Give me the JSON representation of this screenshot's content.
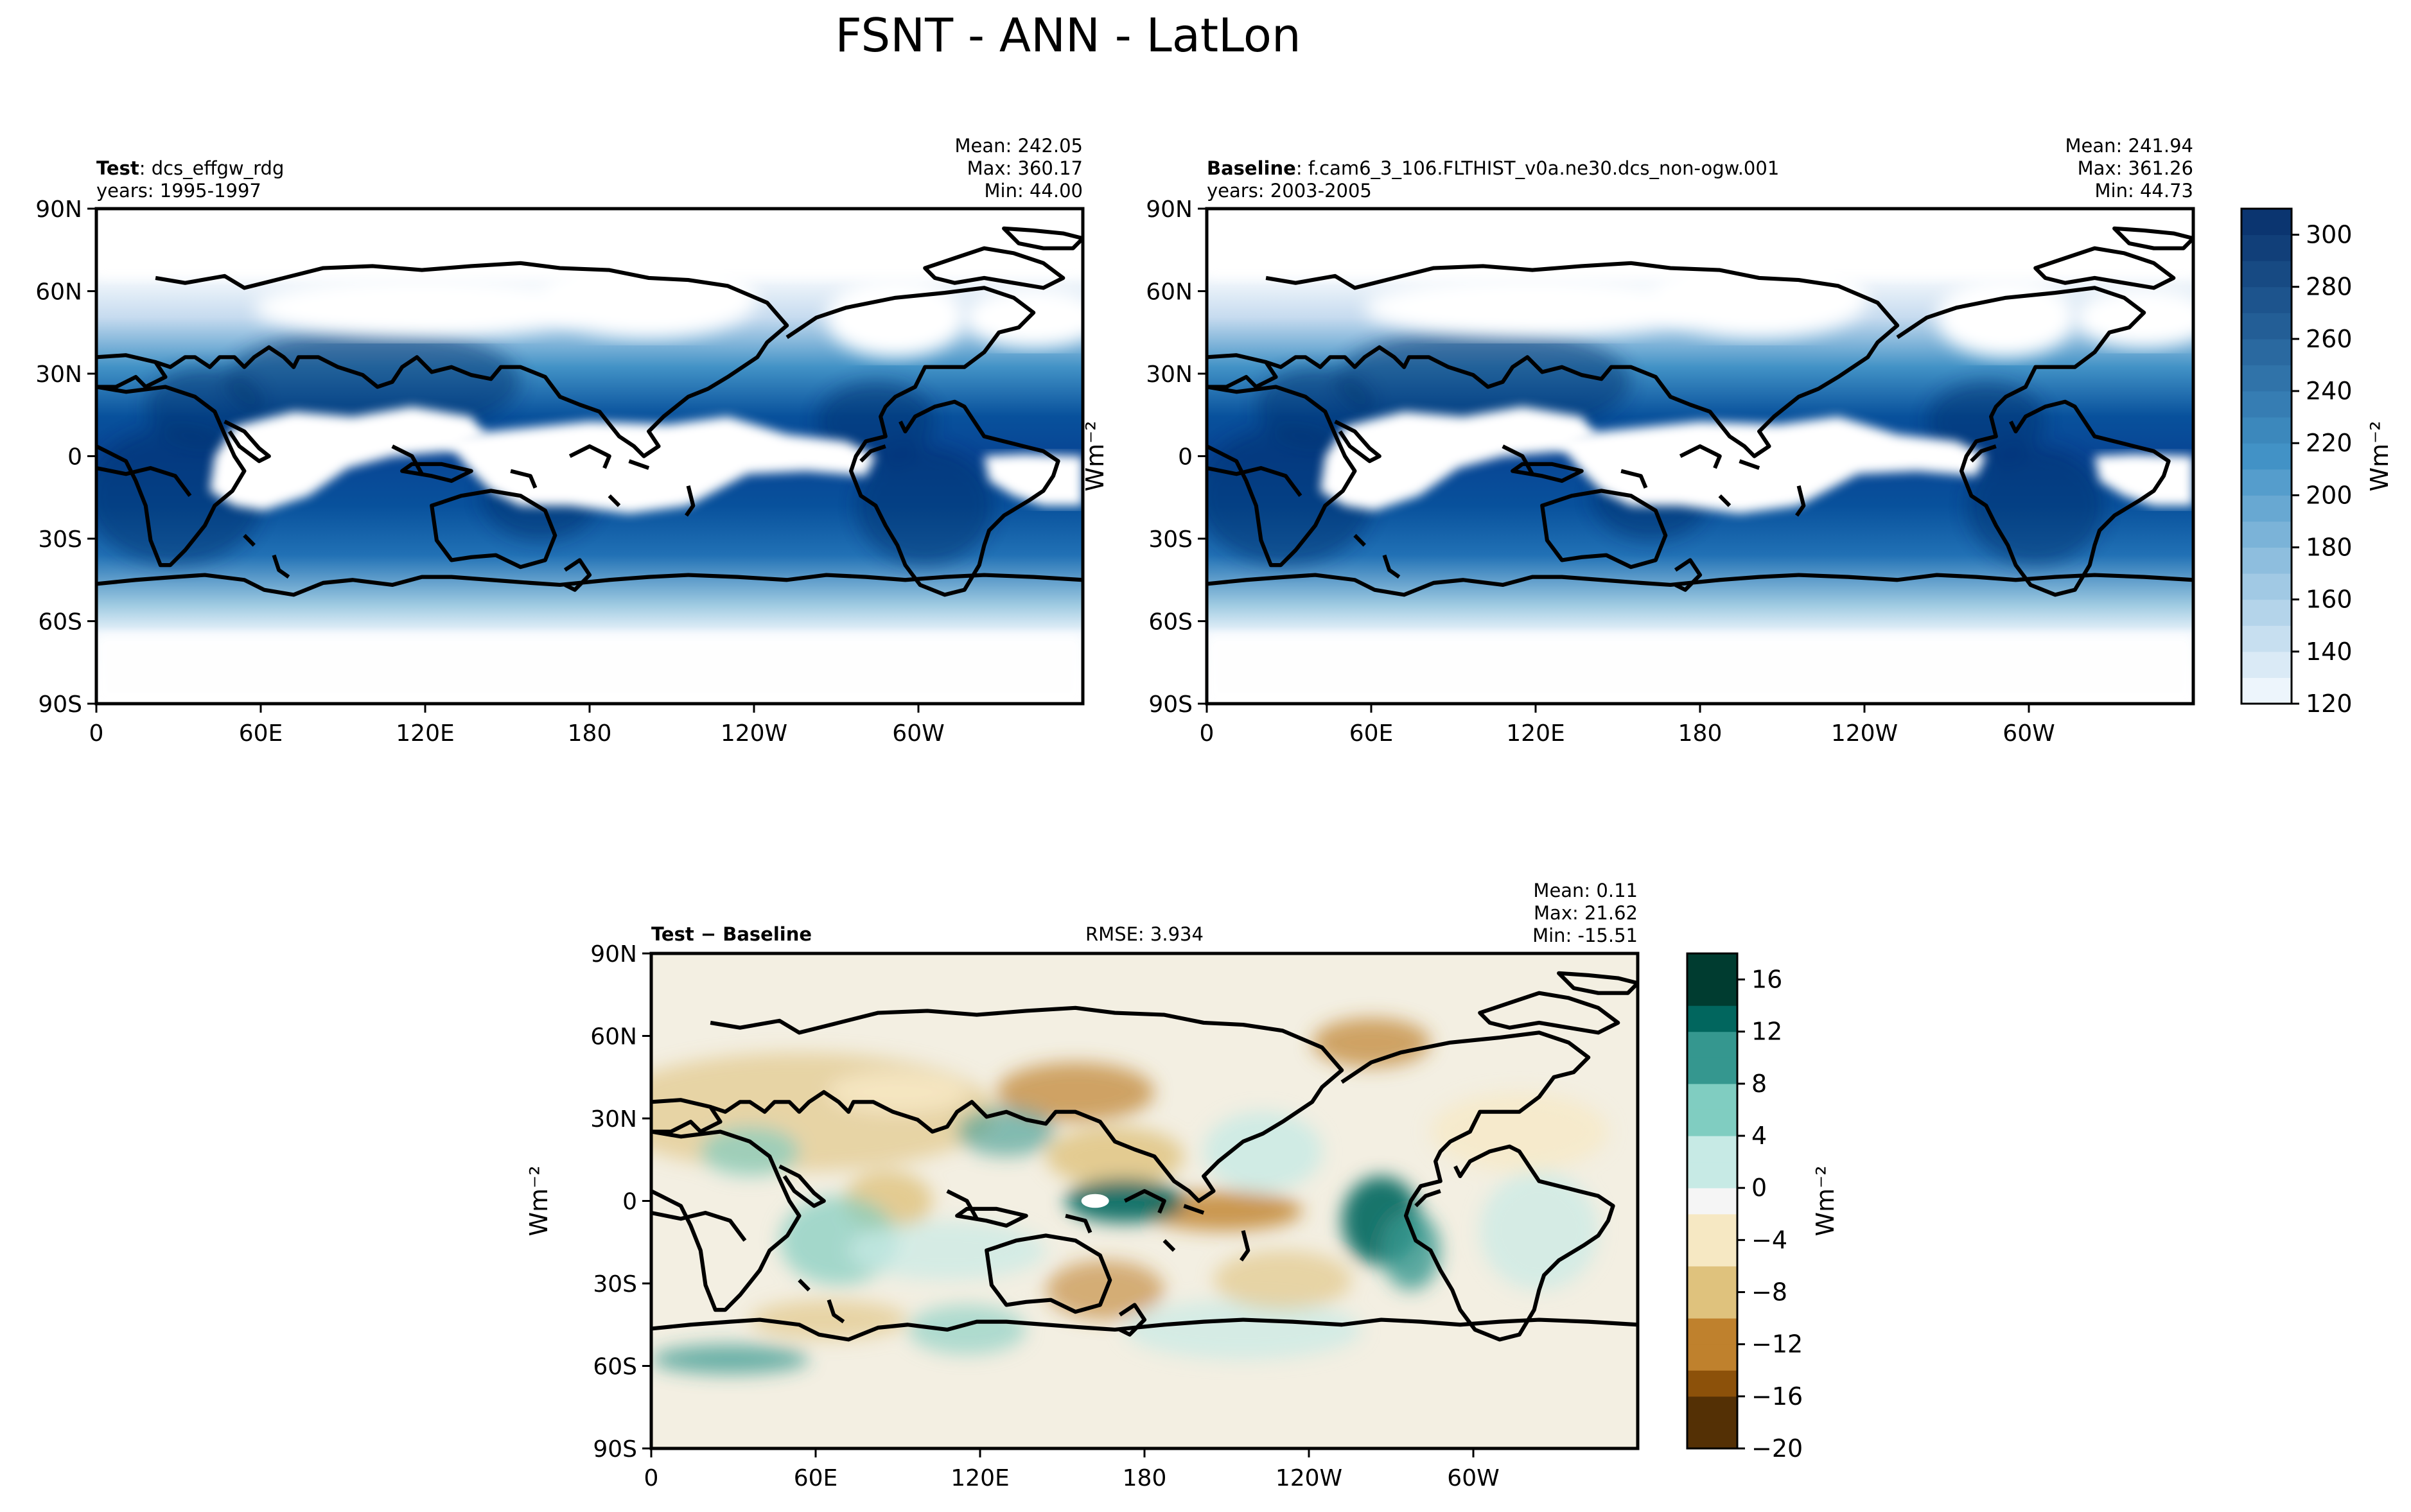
{
  "figure": {
    "title": "FSNT - ANN - LatLon"
  },
  "chart_data": [
    {
      "type": "heatmap",
      "id": "test",
      "label_bold": "Test",
      "label_rest": ": dcs_effgw_rdg",
      "years": "years: 1995-1997",
      "stats": [
        "Mean: 242.05",
        "Max: 360.17",
        "Min: 44.00"
      ],
      "ylabel": "",
      "colormap": "Blues",
      "x_ticks": [
        "0",
        "60E",
        "120E",
        "180",
        "120W",
        "60W"
      ],
      "y_ticks": [
        "90N",
        "60N",
        "30N",
        "0",
        "30S",
        "60S",
        "90S"
      ],
      "xlim": [
        0,
        360
      ],
      "ylim": [
        -90,
        90
      ]
    },
    {
      "type": "heatmap",
      "id": "baseline",
      "label_bold": "Baseline",
      "label_rest": ": f.cam6_3_106.FLTHIST_v0a.ne30.dcs_non-ogw.001",
      "years": "years: 2003-2005",
      "stats": [
        "Mean: 241.94",
        "Max: 361.26",
        "Min: 44.73"
      ],
      "ylabel": "Wm⁻²",
      "colormap": "Blues",
      "x_ticks": [
        "0",
        "60E",
        "120E",
        "180",
        "120W",
        "60W"
      ],
      "y_ticks": [
        "90N",
        "60N",
        "30N",
        "0",
        "30S",
        "60S",
        "90S"
      ],
      "xlim": [
        0,
        360
      ],
      "ylim": [
        -90,
        90
      ]
    },
    {
      "type": "heatmap",
      "id": "diff",
      "label_bold": "Test − Baseline",
      "rmse": "RMSE: 3.934",
      "stats": [
        "Mean:  0.11",
        "Max: 21.62",
        "Min: -15.51"
      ],
      "ylabel": "Wm⁻²",
      "colormap": "BrBG",
      "x_ticks": [
        "0",
        "60E",
        "120E",
        "180",
        "120W",
        "60W"
      ],
      "y_ticks": [
        "90N",
        "60N",
        "30N",
        "0",
        "30S",
        "60S",
        "90S"
      ],
      "xlim": [
        0,
        360
      ],
      "ylim": [
        -90,
        90
      ]
    }
  ],
  "colorbars": {
    "abs": {
      "label": "Wm⁻²",
      "min": 120,
      "max": 310,
      "ticks": [
        120,
        140,
        160,
        180,
        200,
        220,
        240,
        260,
        280,
        300
      ],
      "tick_labels": [
        "120",
        "140",
        "160",
        "180",
        "200",
        "220",
        "240",
        "260",
        "280",
        "300"
      ],
      "levels": 19,
      "colors": [
        "#f7fbff",
        "#08306b"
      ]
    },
    "diff": {
      "label": "Wm⁻²",
      "min": -20,
      "max": 18,
      "ticks": [
        -20,
        -16,
        -12,
        -8,
        -4,
        0,
        4,
        8,
        12,
        16
      ],
      "tick_labels": [
        "−20",
        "−16",
        "−12",
        "−8",
        "−4",
        "0",
        "4",
        "8",
        "12",
        "16"
      ],
      "levels": 19,
      "colors": [
        "#543005",
        "#8c510a",
        "#bf812d",
        "#dfc27d",
        "#f6e8c3",
        "#f5f5f5",
        "#c7eae5",
        "#80cdc1",
        "#35978f",
        "#01665e",
        "#003c30"
      ]
    }
  }
}
